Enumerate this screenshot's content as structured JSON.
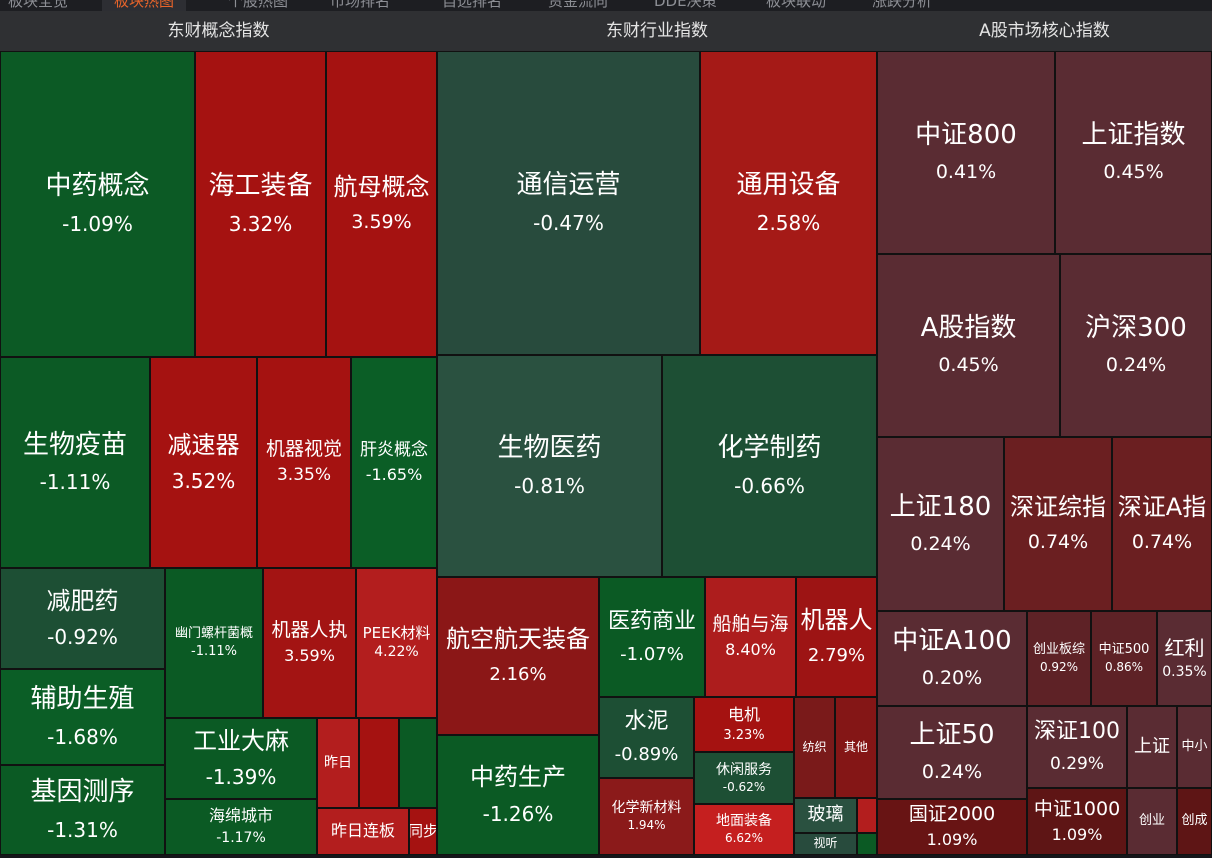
{
  "nav": {
    "tabs": [
      {
        "label": "板块全览",
        "active": false
      },
      {
        "label": "板块热图",
        "active": true
      },
      {
        "label": "个股热图",
        "active": false
      },
      {
        "label": "市场排名",
        "active": false
      },
      {
        "label": "自选排名",
        "active": false
      },
      {
        "label": "资金流向",
        "active": false
      },
      {
        "label": "DDE决策",
        "active": false
      },
      {
        "label": "板块联动",
        "active": false
      },
      {
        "label": "涨跌分析",
        "active": false
      }
    ]
  },
  "colors": {
    "up": "#a61212",
    "down": "#0b5e26",
    "index": "#5c2b33"
  },
  "panels": [
    {
      "title": "东财概念指数",
      "tiles": [
        {
          "name": "中药概念",
          "pct": "-1.09%"
        },
        {
          "name": "海工装备",
          "pct": "3.32%"
        },
        {
          "name": "航母概念",
          "pct": "3.59%"
        },
        {
          "name": "生物疫苗",
          "pct": "-1.11%"
        },
        {
          "name": "减速器",
          "pct": "3.52%"
        },
        {
          "name": "机器视觉",
          "pct": "3.35%"
        },
        {
          "name": "肝炎概念",
          "pct": "-1.65%"
        },
        {
          "name": "减肥药",
          "pct": "-0.92%"
        },
        {
          "name": "幽门螺杆菌概",
          "pct": "-1.11%"
        },
        {
          "name": "机器人执",
          "pct": "3.59%"
        },
        {
          "name": "PEEK材料",
          "pct": "4.22%"
        },
        {
          "name": "辅助生殖",
          "pct": "-1.68%"
        },
        {
          "name": "工业大麻",
          "pct": "-1.39%"
        },
        {
          "name": "基因测序",
          "pct": "-1.31%"
        },
        {
          "name": "海绵城市",
          "pct": "-1.17%"
        },
        {
          "name": "昨日",
          "pct": ""
        },
        {
          "name": "",
          "pct": ""
        },
        {
          "name": "",
          "pct": ""
        },
        {
          "name": "昨日连板",
          "pct": ""
        },
        {
          "name": "同步",
          "pct": ""
        }
      ]
    },
    {
      "title": "东财行业指数",
      "tiles": [
        {
          "name": "通信运营",
          "pct": "-0.47%"
        },
        {
          "name": "通用设备",
          "pct": "2.58%"
        },
        {
          "name": "生物医药",
          "pct": "-0.81%"
        },
        {
          "name": "化学制药",
          "pct": "-0.66%"
        },
        {
          "name": "航空航天装备",
          "pct": "2.16%"
        },
        {
          "name": "医药商业",
          "pct": "-1.07%"
        },
        {
          "name": "船舶与海",
          "pct": "8.40%"
        },
        {
          "name": "机器人",
          "pct": "2.79%"
        },
        {
          "name": "中药生产",
          "pct": "-1.26%"
        },
        {
          "name": "水泥",
          "pct": "-0.89%"
        },
        {
          "name": "电机",
          "pct": "3.23%"
        },
        {
          "name": "纺织",
          "pct": ""
        },
        {
          "name": "其他",
          "pct": ""
        },
        {
          "name": "休闲服务",
          "pct": "-0.62%"
        },
        {
          "name": "化学新材料",
          "pct": "1.94%"
        },
        {
          "name": "地面装备",
          "pct": "6.62%"
        },
        {
          "name": "玻璃",
          "pct": ""
        },
        {
          "name": "视听",
          "pct": ""
        },
        {
          "name": "",
          "pct": ""
        },
        {
          "name": "",
          "pct": ""
        }
      ]
    },
    {
      "title": "A股市场核心指数",
      "tiles": [
        {
          "name": "中证800",
          "pct": "0.41%"
        },
        {
          "name": "上证指数",
          "pct": "0.45%"
        },
        {
          "name": "A股指数",
          "pct": "0.45%"
        },
        {
          "name": "沪深300",
          "pct": "0.24%"
        },
        {
          "name": "上证180",
          "pct": "0.24%"
        },
        {
          "name": "深证综指",
          "pct": "0.74%"
        },
        {
          "name": "深证A指",
          "pct": "0.74%"
        },
        {
          "name": "中证A100",
          "pct": "0.20%"
        },
        {
          "name": "创业板综",
          "pct": "0.92%"
        },
        {
          "name": "中证500",
          "pct": "0.86%"
        },
        {
          "name": "红利",
          "pct": "0.35%"
        },
        {
          "name": "上证50",
          "pct": "0.24%"
        },
        {
          "name": "深证100",
          "pct": "0.29%"
        },
        {
          "name": "上证",
          "pct": ""
        },
        {
          "name": "中小",
          "pct": ""
        },
        {
          "name": "国证2000",
          "pct": "1.09%"
        },
        {
          "name": "中证1000",
          "pct": "1.09%"
        },
        {
          "name": "创业",
          "pct": ""
        },
        {
          "name": "创成",
          "pct": ""
        }
      ]
    }
  ]
}
